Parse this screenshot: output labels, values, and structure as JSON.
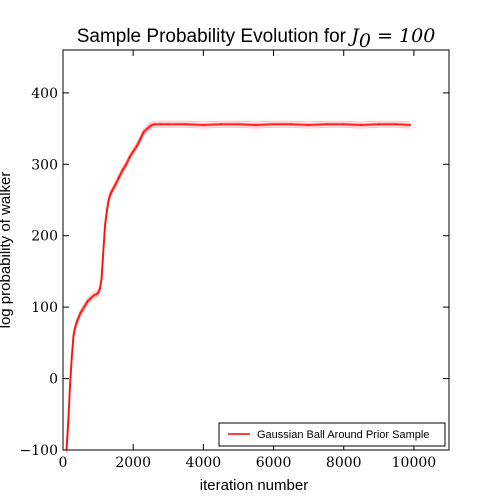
{
  "chart_data": {
    "type": "line",
    "title": "Sample Probability Evolution for ",
    "title_math": "J",
    "title_math_sub": "0",
    "title_math_rest": " = 100",
    "xlabel": "iteration number",
    "ylabel": "log probability of walker",
    "xlim": [
      0,
      11000
    ],
    "ylim": [
      -100,
      460
    ],
    "xticks": [
      0,
      2000,
      4000,
      6000,
      8000,
      10000
    ],
    "yticks": [
      -100,
      0,
      100,
      200,
      300,
      400
    ],
    "grid": false,
    "legend_position": "bottom-right",
    "colors": {
      "series": "#ff0000",
      "axes": "#000000"
    },
    "series": [
      {
        "name": "Gaussian Ball Around Prior Sample",
        "x": [
          100,
          150,
          200,
          250,
          300,
          350,
          400,
          500,
          600,
          700,
          800,
          900,
          950,
          1000,
          1050,
          1100,
          1150,
          1200,
          1250,
          1300,
          1350,
          1400,
          1500,
          1600,
          1700,
          1800,
          1900,
          2000,
          2100,
          2200,
          2300,
          2400,
          2500,
          2600,
          2800,
          3000,
          3500,
          4000,
          4500,
          5000,
          5500,
          6000,
          6500,
          7000,
          7500,
          8000,
          8500,
          9000,
          9500,
          9900
        ],
        "y": [
          -100,
          -60,
          -10,
          30,
          60,
          72,
          80,
          92,
          100,
          108,
          113,
          117,
          118,
          120,
          125,
          140,
          180,
          215,
          235,
          250,
          258,
          263,
          272,
          282,
          292,
          300,
          310,
          318,
          325,
          335,
          345,
          350,
          354,
          356,
          356,
          356,
          356,
          355,
          356,
          356,
          355,
          356,
          356,
          355,
          356,
          356,
          355,
          356,
          356,
          355
        ]
      }
    ]
  }
}
